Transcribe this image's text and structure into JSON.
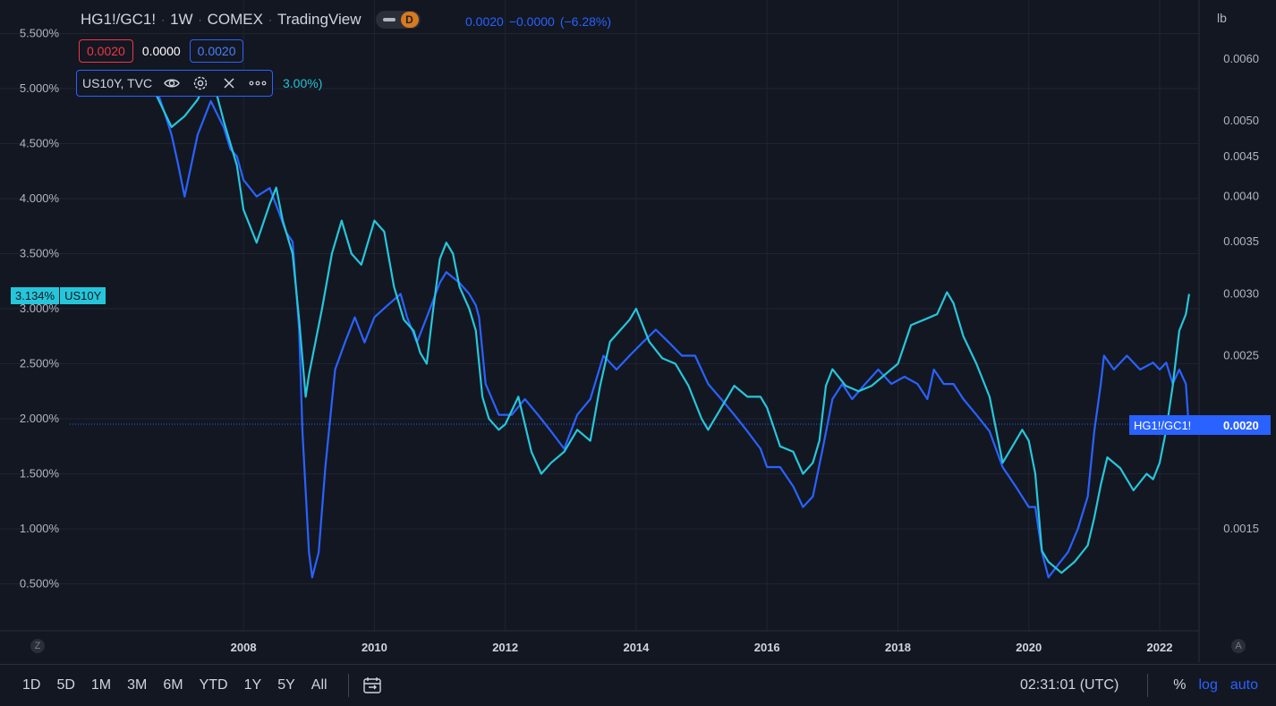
{
  "header": {
    "symbol": "HG1!/GC1!",
    "interval": "1W",
    "exchange": "COMEX",
    "source": "TradingView",
    "badge": "D",
    "last_value": "0.0020",
    "change": "−0.0000",
    "change_pct": "(−6.28%)"
  },
  "ohlc": {
    "first": "0.0020",
    "second": "0.0000",
    "third": "0.0020"
  },
  "study": {
    "label": "US10Y, TVC",
    "value_partial": "3.00%)"
  },
  "right_axis": {
    "unit": "lb",
    "ticks": [
      "0.0060",
      "0.0050",
      "0.0045",
      "0.0040",
      "0.0035",
      "0.0030",
      "0.0025",
      "0.0015"
    ]
  },
  "left_axis": {
    "ticks": [
      "5.500%",
      "5.000%",
      "4.500%",
      "4.000%",
      "3.500%",
      "3.000%",
      "2.500%",
      "2.000%",
      "1.500%",
      "1.000%",
      "0.500%"
    ]
  },
  "x_axis": {
    "ticks": [
      "2008",
      "2010",
      "2012",
      "2014",
      "2016",
      "2018",
      "2020",
      "2022"
    ]
  },
  "price_badges": {
    "us10y_value": "3.134%",
    "us10y_name": "US10Y",
    "ratio_name": "HG1!/GC1!",
    "ratio_value": "0.0020"
  },
  "corners": {
    "left": "Z",
    "right": "A"
  },
  "bottom_bar": {
    "ranges": [
      "1D",
      "5D",
      "1M",
      "3M",
      "6M",
      "YTD",
      "1Y",
      "5Y",
      "All"
    ],
    "time": "02:31:01 (UTC)",
    "percent": "%",
    "log": "log",
    "auto": "auto"
  },
  "colors": {
    "us10y": "#26c6da",
    "ratio": "#2962ff",
    "background": "#131722"
  },
  "chart_data": {
    "type": "line",
    "x_range": [
      2006.5,
      2022.5
    ],
    "grid": true,
    "series": [
      {
        "name": "US10Y",
        "axis": "left",
        "unit": "%",
        "x": [
          2006.5,
          2006.7,
          2006.9,
          2007.1,
          2007.3,
          2007.5,
          2007.7,
          2007.8,
          2007.9,
          2008.0,
          2008.2,
          2008.4,
          2008.5,
          2008.6,
          2008.75,
          2008.85,
          2008.95,
          2009.0,
          2009.1,
          2009.2,
          2009.35,
          2009.5,
          2009.65,
          2009.8,
          2009.9,
          2010.0,
          2010.15,
          2010.3,
          2010.45,
          2010.6,
          2010.7,
          2010.8,
          2010.9,
          2011.0,
          2011.1,
          2011.2,
          2011.3,
          2011.45,
          2011.55,
          2011.65,
          2011.75,
          2011.9,
          2012.0,
          2012.2,
          2012.4,
          2012.55,
          2012.7,
          2012.9,
          2013.1,
          2013.3,
          2013.45,
          2013.6,
          2013.75,
          2013.9,
          2014.0,
          2014.2,
          2014.4,
          2014.6,
          2014.8,
          2015.0,
          2015.1,
          2015.3,
          2015.5,
          2015.7,
          2015.9,
          2016.0,
          2016.2,
          2016.4,
          2016.55,
          2016.7,
          2016.8,
          2016.9,
          2017.0,
          2017.2,
          2017.4,
          2017.6,
          2017.8,
          2018.0,
          2018.2,
          2018.4,
          2018.6,
          2018.75,
          2018.85,
          2019.0,
          2019.2,
          2019.4,
          2019.6,
          2019.75,
          2019.9,
          2020.0,
          2020.1,
          2020.2,
          2020.3,
          2020.5,
          2020.7,
          2020.9,
          2021.0,
          2021.1,
          2021.2,
          2021.4,
          2021.6,
          2021.8,
          2021.9,
          2022.0,
          2022.1,
          2022.2,
          2022.3,
          2022.4,
          2022.45
        ],
        "values": [
          5.15,
          4.9,
          4.65,
          4.75,
          4.9,
          5.15,
          4.7,
          4.5,
          4.3,
          3.9,
          3.6,
          3.95,
          4.1,
          3.8,
          3.5,
          2.9,
          2.2,
          2.4,
          2.7,
          3.0,
          3.5,
          3.8,
          3.5,
          3.4,
          3.6,
          3.8,
          3.7,
          3.2,
          2.9,
          2.8,
          2.6,
          2.5,
          3.0,
          3.45,
          3.6,
          3.5,
          3.2,
          3.0,
          2.8,
          2.2,
          2.0,
          1.9,
          1.95,
          2.2,
          1.7,
          1.5,
          1.6,
          1.7,
          1.9,
          1.8,
          2.3,
          2.7,
          2.8,
          2.9,
          3.0,
          2.7,
          2.55,
          2.5,
          2.3,
          2.0,
          1.9,
          2.1,
          2.3,
          2.2,
          2.2,
          2.1,
          1.75,
          1.7,
          1.5,
          1.6,
          1.8,
          2.3,
          2.45,
          2.3,
          2.25,
          2.3,
          2.4,
          2.5,
          2.85,
          2.9,
          2.95,
          3.15,
          3.05,
          2.75,
          2.5,
          2.2,
          1.6,
          1.75,
          1.9,
          1.8,
          1.5,
          0.8,
          0.7,
          0.6,
          0.7,
          0.85,
          1.1,
          1.4,
          1.65,
          1.55,
          1.35,
          1.5,
          1.45,
          1.6,
          1.9,
          2.3,
          2.8,
          2.95,
          3.134
        ]
      },
      {
        "name": "HG1!/GC1!",
        "axis": "right",
        "unit": "lb",
        "x": [
          2006.5,
          2006.7,
          2006.8,
          2006.9,
          2007.0,
          2007.1,
          2007.3,
          2007.5,
          2007.7,
          2007.8,
          2007.9,
          2008.0,
          2008.2,
          2008.4,
          2008.55,
          2008.65,
          2008.75,
          2008.85,
          2008.9,
          2009.0,
          2009.05,
          2009.15,
          2009.25,
          2009.4,
          2009.55,
          2009.7,
          2009.85,
          2010.0,
          2010.2,
          2010.4,
          2010.5,
          2010.65,
          2010.8,
          2011.0,
          2011.1,
          2011.3,
          2011.45,
          2011.55,
          2011.6,
          2011.7,
          2011.9,
          2012.1,
          2012.3,
          2012.5,
          2012.7,
          2012.9,
          2013.1,
          2013.3,
          2013.5,
          2013.7,
          2013.9,
          2014.1,
          2014.3,
          2014.5,
          2014.7,
          2014.9,
          2015.1,
          2015.3,
          2015.5,
          2015.7,
          2015.9,
          2016.0,
          2016.2,
          2016.4,
          2016.55,
          2016.7,
          2016.85,
          2017.0,
          2017.15,
          2017.3,
          2017.5,
          2017.7,
          2017.9,
          2018.1,
          2018.3,
          2018.45,
          2018.55,
          2018.7,
          2018.85,
          2019.0,
          2019.2,
          2019.4,
          2019.6,
          2019.8,
          2020.0,
          2020.1,
          2020.2,
          2020.3,
          2020.45,
          2020.6,
          2020.75,
          2020.9,
          2021.0,
          2021.1,
          2021.15,
          2021.3,
          2021.5,
          2021.7,
          2021.9,
          2022.0,
          2022.1,
          2022.2,
          2022.3,
          2022.4,
          2022.45
        ],
        "values": [
          0.0057,
          0.0054,
          0.0051,
          0.0048,
          0.0044,
          0.004,
          0.0048,
          0.0053,
          0.0049,
          0.0046,
          0.0045,
          0.0042,
          0.004,
          0.0041,
          0.0038,
          0.0036,
          0.0035,
          0.0027,
          0.002,
          0.0014,
          0.0013,
          0.0014,
          0.0018,
          0.0024,
          0.0026,
          0.0028,
          0.0026,
          0.0028,
          0.0029,
          0.003,
          0.0028,
          0.0026,
          0.0028,
          0.0031,
          0.0032,
          0.0031,
          0.003,
          0.0029,
          0.0028,
          0.0023,
          0.0021,
          0.0021,
          0.0022,
          0.0021,
          0.002,
          0.0019,
          0.0021,
          0.0022,
          0.0025,
          0.0024,
          0.0025,
          0.0026,
          0.0027,
          0.0026,
          0.0025,
          0.0025,
          0.0023,
          0.0022,
          0.0021,
          0.002,
          0.0019,
          0.0018,
          0.0018,
          0.0017,
          0.0016,
          0.00165,
          0.0019,
          0.0022,
          0.0023,
          0.0022,
          0.0023,
          0.0024,
          0.0023,
          0.00235,
          0.0023,
          0.0022,
          0.0024,
          0.0023,
          0.0023,
          0.0022,
          0.0021,
          0.002,
          0.0018,
          0.0017,
          0.0016,
          0.0016,
          0.0014,
          0.0013,
          0.00135,
          0.0014,
          0.0015,
          0.00165,
          0.002,
          0.0023,
          0.0025,
          0.0024,
          0.0025,
          0.0024,
          0.00245,
          0.0024,
          0.00245,
          0.0023,
          0.0024,
          0.0023,
          0.002
        ]
      }
    ]
  }
}
